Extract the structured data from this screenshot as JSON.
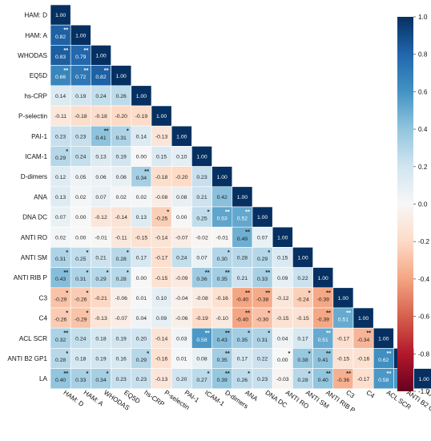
{
  "chart_data": {
    "type": "heatmap",
    "variables": [
      "HAM: D",
      "HAM: A",
      "WHODAS",
      "EQ5D",
      "hs-CRP",
      "P-selectin",
      "PAI-1",
      "ICAM-1",
      "D-dimers",
      "ANA",
      "DNA DC",
      "ANTI RO",
      "ANTI SM",
      "ANTI RIB P",
      "C3",
      "C4",
      "ACL SCR",
      "ANTI B2 GP1",
      "LA"
    ],
    "values": [
      [
        "1.00"
      ],
      [
        "0.82",
        "1.00"
      ],
      [
        "0.83",
        "0.79",
        "1.00"
      ],
      [
        "0.66",
        "0.72",
        "0.82",
        "1.00"
      ],
      [
        "0.14",
        "0.19",
        "0.24",
        "0.26",
        "1.00"
      ],
      [
        "-0.11",
        "-0.18",
        "-0.18",
        "-0.20",
        "-0.19",
        "1.00"
      ],
      [
        "0.23",
        "0.23",
        "0.41",
        "0.31",
        "0.14",
        "-0.13",
        "1.00"
      ],
      [
        "0.29",
        "0.24",
        "0.13",
        "0.19",
        "0.00",
        "0.15",
        "0.10",
        "1.00"
      ],
      [
        "0.12",
        "0.05",
        "0.06",
        "0.08",
        "0.34",
        "-0.18",
        "-0.20",
        "0.23",
        "1.00"
      ],
      [
        "0.13",
        "0.02",
        "0.07",
        "0.02",
        "0.02",
        "-0.08",
        "0.08",
        "0.21",
        "0.42",
        "1.00"
      ],
      [
        "0.07",
        "0.00",
        "-0.12",
        "-0.14",
        "0.13",
        "-0.25",
        "0.00",
        "0.25",
        "0.53",
        "0.52",
        "1.00"
      ],
      [
        "0.02",
        "0.00",
        "-0.01",
        "-0.11",
        "-0.15",
        "-0.14",
        "-0.07",
        "-0.02",
        "-0.01",
        "0.49",
        "0.07",
        "1.00"
      ],
      [
        "0.31",
        "0.25",
        "0.21",
        "0.28",
        "0.17",
        "-0.17",
        "0.24",
        "0.07",
        "0.30",
        "0.28",
        "0.29",
        "0.15",
        "1.00"
      ],
      [
        "0.43",
        "0.31",
        "0.29",
        "0.28",
        "0.00",
        "-0.15",
        "-0.09",
        "0.36",
        "0.35",
        "0.21",
        "0.33",
        "0.09",
        "0.22",
        "1.00"
      ],
      [
        "-0.29",
        "-0.26",
        "-0.21",
        "-0.06",
        "0.01",
        "0.10",
        "-0.04",
        "-0.08",
        "-0.16",
        "-0.40",
        "-0.38",
        "-0.12",
        "-0.24",
        "-0.39",
        "1.00"
      ],
      [
        "-0.26",
        "-0.29",
        "-0.13",
        "-0.07",
        "0.04",
        "0.09",
        "-0.06",
        "-0.19",
        "-0.10",
        "-0.40",
        "-0.30",
        "-0.15",
        "-0.15",
        "-0.39",
        "0.51",
        "1.00"
      ],
      [
        "0.32",
        "0.24",
        "0.18",
        "0.19",
        "0.20",
        "-0.14",
        "0.03",
        "0.58",
        "0.43",
        "0.35",
        "0.31",
        "0.04",
        "0.17",
        "0.51",
        "-0.17",
        "-0.34",
        "1.00"
      ],
      [
        "0.28",
        "0.18",
        "0.19",
        "0.16",
        "0.29",
        "-0.16",
        "0.01",
        "0.08",
        "0.35",
        "0.17",
        "0.22",
        "0.00",
        "0.38",
        "0.41",
        "-0.15",
        "-0.16",
        "0.62",
        "1.00"
      ],
      [
        "0.40",
        "0.33",
        "0.34",
        "0.23",
        "0.23",
        "-0.13",
        "0.20",
        "0.27",
        "0.39",
        "0.26",
        "0.23",
        "-0.03",
        "0.28",
        "0.40",
        "-0.36",
        "-0.17",
        "0.58",
        "0.59",
        "1.00"
      ]
    ],
    "significance": [
      [
        ""
      ],
      [
        "**",
        ""
      ],
      [
        "**",
        "**",
        ""
      ],
      [
        "**",
        "**",
        "**",
        ""
      ],
      [
        "",
        "",
        "",
        "",
        ""
      ],
      [
        "",
        "",
        "",
        "",
        "",
        ""
      ],
      [
        "",
        "",
        "**",
        "*",
        "",
        "",
        ""
      ],
      [
        "*",
        "",
        "",
        "",
        "",
        "",
        "",
        ""
      ],
      [
        "",
        "",
        "",
        "",
        "**",
        "",
        "",
        "",
        ""
      ],
      [
        "",
        "",
        "",
        "",
        "",
        "",
        "",
        "",
        "",
        ""
      ],
      [
        "",
        "",
        "",
        "",
        "",
        "*",
        "",
        "*",
        "**",
        "**",
        ""
      ],
      [
        "",
        "",
        "",
        "",
        "",
        "",
        "",
        "",
        "",
        "**",
        "",
        ""
      ],
      [
        "*",
        "*",
        "",
        "*",
        "",
        "",
        "",
        "",
        "*",
        "",
        "*",
        "",
        ""
      ],
      [
        "**",
        "*",
        "*",
        "*",
        "",
        "",
        "",
        "**",
        "**",
        "",
        "**",
        "",
        "",
        ""
      ],
      [
        "*",
        "*",
        "",
        "",
        "",
        "",
        "",
        "",
        "",
        "**",
        "**",
        "",
        "*",
        "**",
        ""
      ],
      [
        "*",
        "*",
        "",
        "",
        "",
        "",
        "",
        "",
        "",
        "**",
        "*",
        "",
        "",
        "**",
        "**",
        ""
      ],
      [
        "**",
        "",
        "",
        "",
        "",
        "",
        "",
        "**",
        "**",
        "*",
        "*",
        "",
        "",
        "**",
        "",
        "**",
        ""
      ],
      [
        "*",
        "",
        "",
        "",
        "*",
        "",
        "",
        "",
        "**",
        "",
        "",
        "*",
        "*",
        "**",
        "",
        "",
        "**",
        ""
      ],
      [
        "**",
        "*",
        "*",
        "",
        "",
        "",
        "",
        "*",
        "**",
        "*",
        "",
        "",
        "*",
        "**",
        "**",
        "",
        "**",
        "**",
        ""
      ]
    ],
    "colorbar": {
      "min": -1.0,
      "max": 1.0,
      "tick_labels": [
        "1.0",
        "0.8",
        "0.6",
        "0.4",
        "0.2",
        "0.0",
        "-0.2",
        "-0.4",
        "-0.6",
        "-0.8",
        "-1.0"
      ],
      "colormap": "RdBu"
    },
    "layout": "lower-triangle",
    "legend_position": "right"
  }
}
